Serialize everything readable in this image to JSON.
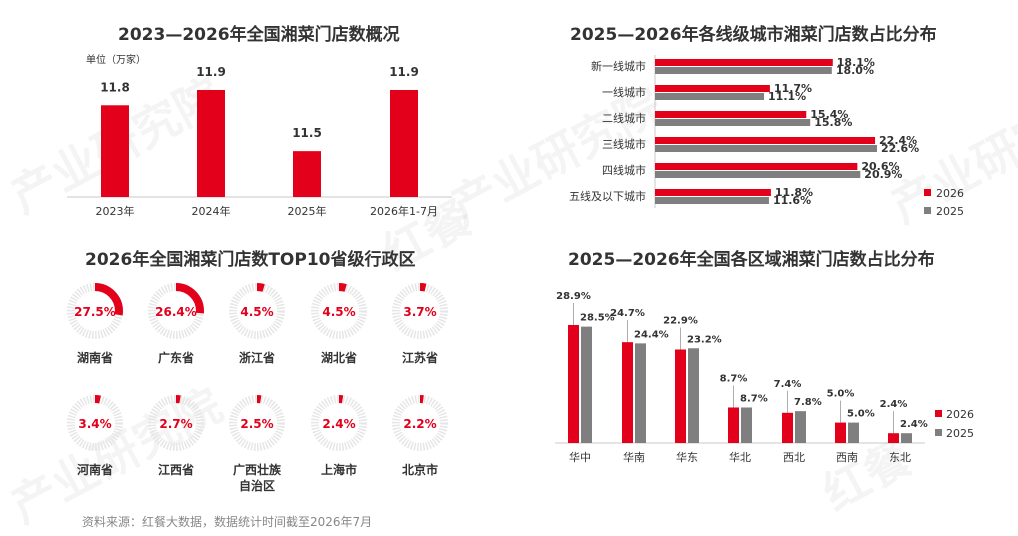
{
  "colors": {
    "red": "#e3001b",
    "gray": "#7f7f7f",
    "ring_bg": "#e6e6e6",
    "axis": "#c8c8c8"
  },
  "watermark": [
    "产业研究院",
    "红餐",
    "产业研究院",
    "红餐",
    "产业研究院"
  ],
  "footer": "资料来源：红餐大数据，数据统计时间截至2026年7月",
  "charts": [
    {
      "title": "2023—2026年全国湘菜门店数概况",
      "chart_data": {
        "type": "bar",
        "unit_label": "单位（万家）",
        "categories": [
          "2023年",
          "2024年",
          "2025年",
          "2026年1-7月"
        ],
        "values": [
          11.8,
          11.9,
          11.5,
          11.9
        ],
        "data_labels": [
          "11.8",
          "11.9",
          "11.5",
          "11.9"
        ]
      }
    },
    {
      "title": "2025—2026年各线级城市湘菜门店数占比分布",
      "chart_data": {
        "type": "bar",
        "orientation": "horizontal",
        "categories": [
          "新一线城市",
          "一线城市",
          "二线城市",
          "三线城市",
          "四线城市",
          "五线及以下城市"
        ],
        "series": [
          {
            "name": "2026",
            "values": [
              18.1,
              11.7,
              15.4,
              22.4,
              20.6,
              11.8
            ],
            "labels": [
              "18.1%",
              "11.7%",
              "15.4%",
              "22.4%",
              "20.6%",
              "11.8%"
            ]
          },
          {
            "name": "2025",
            "values": [
              18.0,
              11.1,
              15.8,
              22.6,
              20.9,
              11.6
            ],
            "labels": [
              "18.0%",
              "11.1%",
              "15.8%",
              "22.6%",
              "20.9%",
              "11.6%"
            ]
          }
        ],
        "legend": "bottom-right"
      }
    },
    {
      "title": "2026年全国湘菜门店数TOP10省级行政区",
      "chart_data": {
        "type": "pie",
        "style": "progress-ring",
        "categories": [
          "湖南省",
          "广东省",
          "浙江省",
          "湖北省",
          "江苏省",
          "河南省",
          "江西省",
          "广西壮族自治区",
          "上海市",
          "北京市"
        ],
        "name_lines": [
          [
            "湖南省"
          ],
          [
            "广东省"
          ],
          [
            "浙江省"
          ],
          [
            "湖北省"
          ],
          [
            "江苏省"
          ],
          [
            "河南省"
          ],
          [
            "江西省"
          ],
          [
            "广西壮族",
            "自治区"
          ],
          [
            "上海市"
          ],
          [
            "北京市"
          ]
        ],
        "values": [
          27.5,
          26.4,
          4.5,
          4.5,
          3.7,
          3.4,
          2.7,
          2.5,
          2.4,
          2.2
        ],
        "labels": [
          "27.5%",
          "26.4%",
          "4.5%",
          "4.5%",
          "3.7%",
          "3.4%",
          "2.7%",
          "2.5%",
          "2.4%",
          "2.2%"
        ]
      }
    },
    {
      "title": "2025—2026年全国各区域湘菜门店数占比分布",
      "chart_data": {
        "type": "bar",
        "categories": [
          "华中",
          "华南",
          "华东",
          "华北",
          "西北",
          "西南",
          "东北"
        ],
        "series": [
          {
            "name": "2026",
            "values": [
              28.9,
              24.7,
              22.9,
              8.7,
              7.4,
              5.0,
              2.4
            ],
            "labels": [
              "28.9%",
              "24.7%",
              "22.9%",
              "8.7%",
              "7.4%",
              "5.0%",
              "2.4%"
            ]
          },
          {
            "name": "2025",
            "values": [
              28.5,
              24.4,
              23.2,
              8.7,
              7.8,
              5.0,
              2.4
            ],
            "labels": [
              "28.5%",
              "24.4%",
              "23.2%",
              "8.7%",
              "7.8%",
              "5.0%",
              "2.4%"
            ]
          }
        ],
        "legend": "right"
      }
    }
  ]
}
